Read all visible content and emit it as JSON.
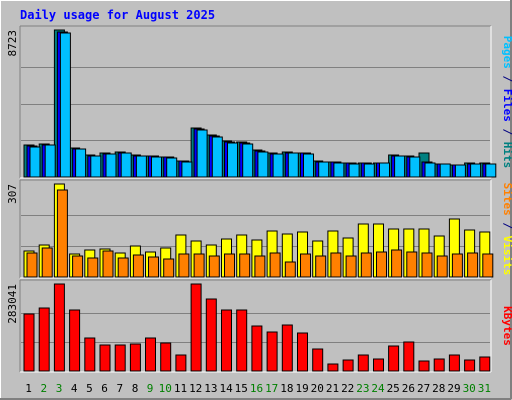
{
  "chart_data": {
    "type": "bar",
    "title": "Daily usage for August 2025",
    "categories": [
      "1",
      "2",
      "3",
      "4",
      "5",
      "6",
      "7",
      "8",
      "9",
      "10",
      "11",
      "12",
      "13",
      "14",
      "15",
      "16",
      "17",
      "18",
      "19",
      "20",
      "21",
      "22",
      "23",
      "24",
      "25",
      "26",
      "27",
      "28",
      "29",
      "30",
      "31"
    ],
    "weekend_days": [
      "2",
      "3",
      "9",
      "10",
      "16",
      "17",
      "23",
      "24",
      "30",
      "31"
    ],
    "panels": [
      {
        "id": "hits-files-pages",
        "max_label": "8723",
        "ymax": 8723,
        "series": [
          {
            "name": "Hits",
            "color": "#008080",
            "values": [
              1870,
              1940,
              8723,
              1720,
              1290,
              1410,
              1480,
              1290,
              1260,
              1200,
              960,
              2930,
              2500,
              2120,
              2050,
              1580,
              1420,
              1500,
              1440,
              940,
              900,
              840,
              850,
              860,
              1300,
              1240,
              1440,
              800,
              740,
              820,
              810
            ]
          },
          {
            "name": "Files",
            "color": "#0000ff",
            "values": [
              1820,
              1900,
              8630,
              1660,
              1250,
              1370,
              1430,
              1250,
              1230,
              1160,
              930,
              2860,
              2420,
              2060,
              1990,
              1520,
              1380,
              1450,
              1400,
              910,
              870,
              810,
              820,
              830,
              1270,
              1200,
              880,
              770,
              710,
              790,
              790
            ]
          },
          {
            "name": "Pages",
            "color": "#00c0ff",
            "values": [
              1800,
              1880,
              8560,
              1640,
              1230,
              1350,
              1410,
              1230,
              1200,
              1140,
              910,
              2790,
              2400,
              2030,
              1970,
              1500,
              1360,
              1430,
              1370,
              890,
              850,
              790,
              800,
              810,
              1250,
              1180,
              860,
              750,
              700,
              770,
              770
            ]
          }
        ]
      },
      {
        "id": "visits-sites",
        "max_label": "307",
        "ymax": 307,
        "series": [
          {
            "name": "Visits",
            "color": "#ffff00",
            "values": [
              85,
              104,
              307,
              75,
              90,
              92,
              78,
              102,
              82,
              95,
              138,
              118,
              105,
              125,
              140,
              122,
              153,
              142,
              150,
              118,
              152,
              130,
              175,
              175,
              157,
              157,
              158,
              135,
              190,
              155,
              148
            ]
          },
          {
            "name": "Sites",
            "color": "#ff8000",
            "values": [
              80,
              95,
              286,
              70,
              63,
              86,
              62,
              72,
              66,
              60,
              76,
              76,
              70,
              75,
              75,
              70,
              80,
              50,
              75,
              70,
              80,
              70,
              80,
              84,
              88,
              83,
              80,
              70,
              75,
              78,
              75
            ]
          }
        ]
      },
      {
        "id": "kbytes",
        "max_label": "283041",
        "ymax": 283041,
        "series": [
          {
            "name": "KBytes",
            "color": "#ff0000",
            "values": [
              187000,
              206000,
              283041,
              199000,
              108000,
              84000,
              86000,
              87000,
              107000,
              92000,
              52000,
              283041,
              233000,
              199000,
              198000,
              145000,
              126000,
              150000,
              124000,
              70000,
              24000,
              35000,
              53000,
              40000,
              82000,
              95000,
              32000,
              38000,
              52000,
              35000,
              47000
            ]
          }
        ]
      }
    ],
    "right_labels": [
      {
        "panel": "hits-files-pages",
        "parts": [
          {
            "text": "Pages",
            "color": "#00c0ff"
          },
          {
            "text": " / ",
            "color": "#000080"
          },
          {
            "text": "Files",
            "color": "#0000ff"
          },
          {
            "text": " / ",
            "color": "#000080"
          },
          {
            "text": "Hits",
            "color": "#008080"
          }
        ]
      },
      {
        "panel": "visits-sites",
        "parts": [
          {
            "text": "Sites",
            "color": "#ff8000"
          },
          {
            "text": " / ",
            "color": "#000080"
          },
          {
            "text": "Visits",
            "color": "#ffff00"
          }
        ]
      },
      {
        "panel": "kbytes",
        "parts": [
          {
            "text": "KBytes",
            "color": "#ff0000"
          }
        ]
      }
    ]
  }
}
